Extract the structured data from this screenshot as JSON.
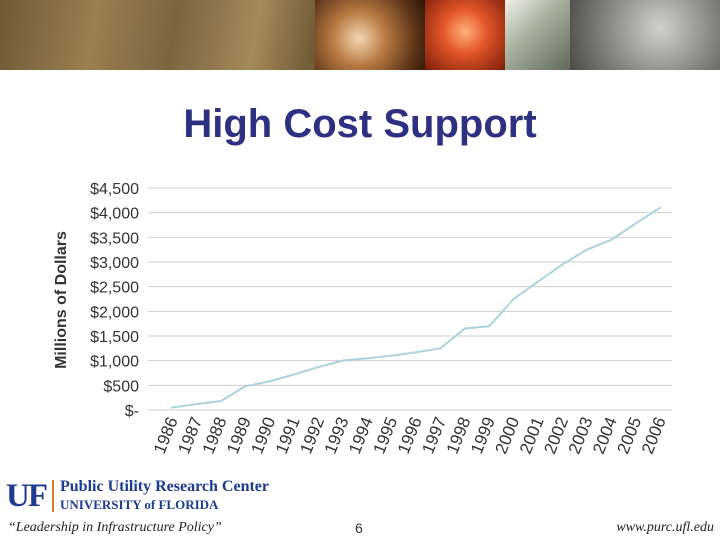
{
  "slide": {
    "title": "High Cost Support",
    "page_number": "6"
  },
  "logo": {
    "mark": "UF",
    "org_name": "Public Utility Research Center",
    "university": "UNIVERSITY of FLORIDA"
  },
  "footer": {
    "tagline": "“Leadership in Infrastructure Policy”",
    "url": "www.purc.ufl.edu"
  },
  "colors": {
    "title": "#2e3181",
    "line": "#a9d4dd",
    "grid": "#cfcfcf",
    "brand_blue": "#1d3c8f",
    "brand_orange": "#e07a2e"
  },
  "chart_data": {
    "type": "line",
    "ylabel": "Millions of Dollars",
    "xlabel": "",
    "ylim": [
      0,
      4500
    ],
    "ytick_values": [
      0,
      500,
      1000,
      1500,
      2000,
      2500,
      3000,
      3500,
      4000,
      4500
    ],
    "ytick_labels": [
      "$-",
      "$500",
      "$1,000",
      "$1,500",
      "$2,000",
      "$2,500",
      "$3,000",
      "$3,500",
      "$4,000",
      "$4,500"
    ],
    "categories": [
      "1986",
      "1987",
      "1988",
      "1989",
      "1990",
      "1991",
      "1992",
      "1993",
      "1994",
      "1995",
      "1996",
      "1997",
      "1998",
      "1999",
      "2000",
      "2001",
      "2002",
      "2003",
      "2004",
      "2005",
      "2006"
    ],
    "series": [
      {
        "values": [
          50,
          120,
          180,
          480,
          580,
          720,
          870,
          1000,
          1050,
          1100,
          1170,
          1250,
          1650,
          1700,
          2250,
          2600,
          2950,
          3250,
          3450,
          3780,
          4100
        ]
      }
    ],
    "grid": true,
    "legend": "none"
  }
}
